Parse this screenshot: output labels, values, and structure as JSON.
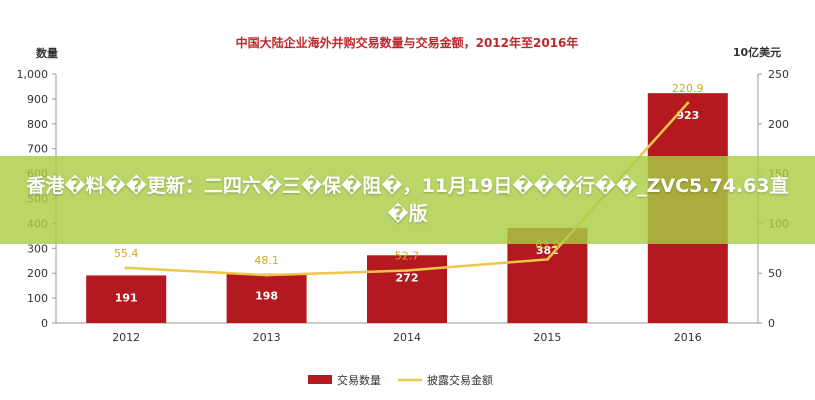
{
  "banner": {
    "text": "香港�料��更新：二四六�三�保�阻�，11月19日���行��_ZVC5.74.63直�版"
  },
  "chart_data": {
    "type": "bar",
    "title": "中国大陆企业海外并购交易数量与交易金额，2012年至2016年",
    "categories": [
      "2012",
      "2013",
      "2014",
      "2015",
      "2016"
    ],
    "left_axis": {
      "label": "数量",
      "ticks": [
        "0",
        "100",
        "200",
        "300",
        "400",
        "500",
        "600",
        "700",
        "800",
        "900",
        "1,000"
      ],
      "ylim": [
        0,
        1000
      ]
    },
    "right_axis": {
      "label": "10亿美元",
      "ticks": [
        "0",
        "50",
        "100",
        "150",
        "200",
        "250"
      ],
      "ylim": [
        0,
        250
      ]
    },
    "series": [
      {
        "name": "交易数量",
        "kind": "bar",
        "axis": "left",
        "color": "#b3191e",
        "values": [
          191,
          198,
          272,
          382,
          923
        ],
        "labels": [
          "191",
          "198",
          "272",
          "382",
          "923"
        ]
      },
      {
        "name": "披露交易金额",
        "kind": "line",
        "axis": "right",
        "color": "#eec64a",
        "values": [
          55.4,
          48.1,
          52.7,
          63.9,
          220.9
        ],
        "labels": [
          "55.4",
          "48.1",
          "52.7",
          "63.9",
          "220.9"
        ]
      }
    ],
    "legend": "bottom-center",
    "grid": false
  }
}
